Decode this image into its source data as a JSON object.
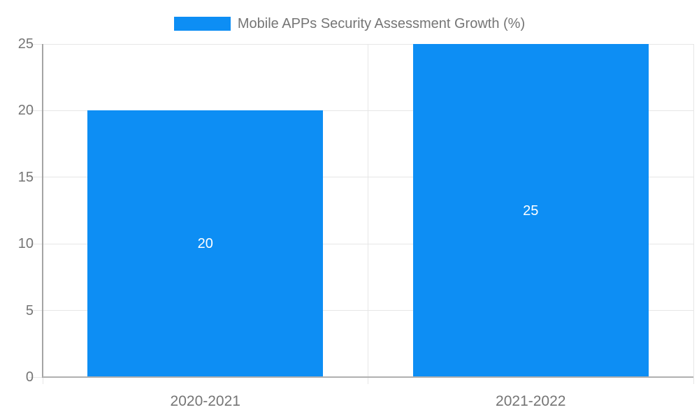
{
  "chart_data": {
    "type": "bar",
    "title": "",
    "legend": {
      "label": "Mobile APPs Security Assessment Growth (%)",
      "position": "top"
    },
    "categories": [
      "2020-2021",
      "2021-2022"
    ],
    "series": [
      {
        "name": "Mobile APPs Security Assessment Growth (%)",
        "values": [
          20,
          25
        ]
      }
    ],
    "data_labels": [
      "20",
      "25"
    ],
    "xlabel": "",
    "ylabel": "",
    "ylim": [
      0,
      25
    ],
    "yticks": [
      0,
      5,
      10,
      15,
      20,
      25
    ],
    "grid": true,
    "colors": {
      "bar": "#0d8ef4",
      "label_text": "#757575",
      "gridline": "#e6e6e6",
      "y_axis_line": "#a4a4a4",
      "x_axis_line": "#b0b0b0",
      "data_label": "#ffffff",
      "background": "#ffffff"
    }
  }
}
